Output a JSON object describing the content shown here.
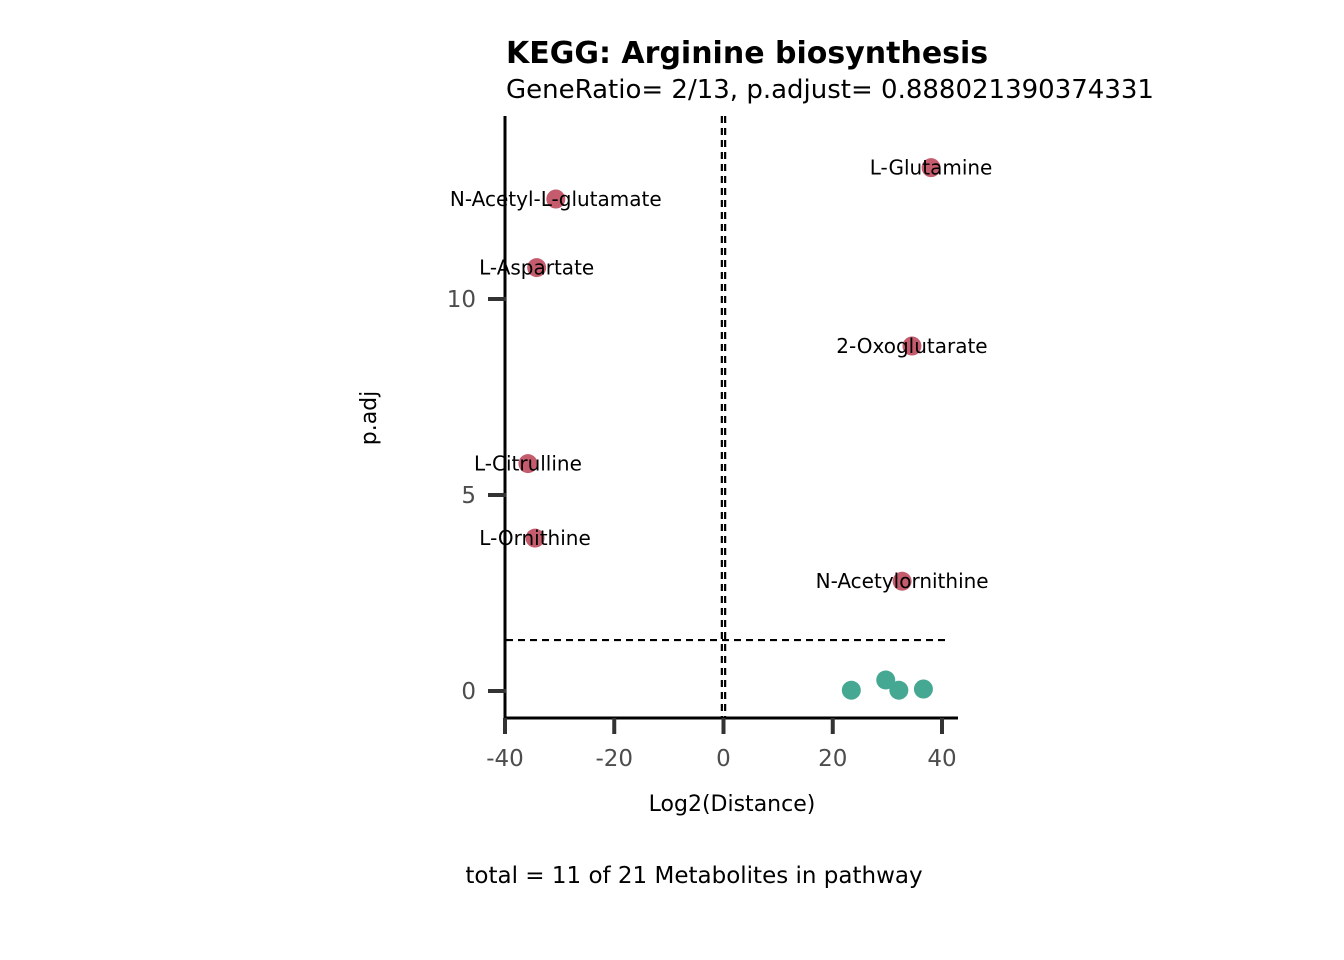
{
  "chart_data": {
    "type": "scatter",
    "title": "KEGG: Arginine biosynthesis",
    "subtitle": "GeneRatio= 2/13, p.adjust= 0.888021390374331",
    "xlabel": "Log2(Distance)",
    "ylabel": "p.adj",
    "caption": "total = 11 of 21 Metabolites in pathway",
    "xlim": [
      -40,
      42
    ],
    "ylim": [
      -0.7,
      14.5
    ],
    "x_ticks": [
      -40,
      -20,
      0,
      20,
      40
    ],
    "y_ticks": [
      0,
      5,
      10
    ],
    "vlines": [
      -0.3,
      0.3
    ],
    "hline": 1.3,
    "grid": false,
    "colors": {
      "significant": "#c45c6e",
      "not_significant": "#45a892"
    },
    "points": [
      {
        "x": 38.0,
        "y": 13.35,
        "label": "L-Glutamine",
        "group": "significant"
      },
      {
        "x": -30.7,
        "y": 12.55,
        "label": "N-Acetyl-L-glutamate",
        "group": "significant"
      },
      {
        "x": -34.2,
        "y": 10.8,
        "label": "L-Aspartate",
        "group": "significant"
      },
      {
        "x": 34.5,
        "y": 8.8,
        "label": "2-Oxoglutarate",
        "group": "significant"
      },
      {
        "x": -35.8,
        "y": 5.8,
        "label": "L-Citrulline",
        "group": "significant"
      },
      {
        "x": -34.5,
        "y": 3.9,
        "label": "L-Ornithine",
        "group": "significant"
      },
      {
        "x": 32.7,
        "y": 2.8,
        "label": "N-Acetylornithine",
        "group": "significant"
      },
      {
        "x": 23.4,
        "y": 0.02,
        "label": "",
        "group": "not_significant"
      },
      {
        "x": 29.7,
        "y": 0.28,
        "label": "",
        "group": "not_significant"
      },
      {
        "x": 32.1,
        "y": 0.02,
        "label": "",
        "group": "not_significant"
      },
      {
        "x": 36.6,
        "y": 0.05,
        "label": "",
        "group": "not_significant"
      }
    ]
  }
}
